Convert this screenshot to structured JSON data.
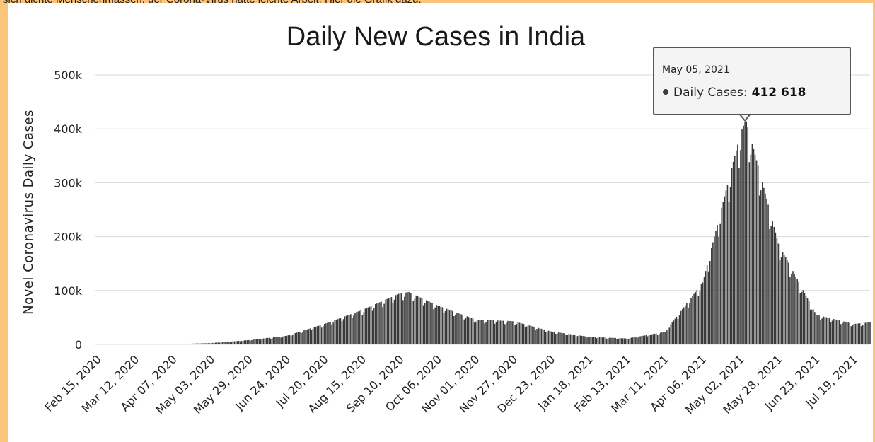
{
  "caption": "sich dichte Menschenmassen, der Corona-Virus hatte leichte Arbeit. Hier die Grafik dazu:",
  "chart_data": {
    "type": "bar",
    "title": "Daily New Cases in India",
    "ylabel": "Novel Coronavirus Daily Cases",
    "xlabel": "",
    "ylim": [
      0,
      500000
    ],
    "grid": true,
    "y_tick_labels": [
      "0",
      "100k",
      "200k",
      "300k",
      "400k",
      "500k"
    ],
    "x_tick_labels": [
      "Feb 15, 2020",
      "Mar 12, 2020",
      "Apr 07, 2020",
      "May 03, 2020",
      "May 29, 2020",
      "Jun 24, 2020",
      "Jul 20, 2020",
      "Aug 15, 2020",
      "Sep 10, 2020",
      "Oct 06, 2020",
      "Nov 01, 2020",
      "Nov 27, 2020",
      "Dec 23, 2020",
      "Jan 18, 2021",
      "Feb 13, 2021",
      "Mar 11, 2021",
      "Apr 06, 2021",
      "May 02, 2021",
      "May 28, 2021",
      "Jun 23, 2021",
      "Jul 19, 2021"
    ],
    "x_range": [
      "2020-02-15",
      "2021-07-30"
    ],
    "series": [
      {
        "values_by_date": [
          [
            "2020-02-15",
            0
          ],
          [
            "2020-03-12",
            20
          ],
          [
            "2020-04-07",
            600
          ],
          [
            "2020-05-03",
            2500
          ],
          [
            "2020-05-29",
            8000
          ],
          [
            "2020-06-24",
            16000
          ],
          [
            "2020-07-20",
            38000
          ],
          [
            "2020-08-15",
            64000
          ],
          [
            "2020-09-10",
            95000
          ],
          [
            "2020-09-16",
            97000
          ],
          [
            "2020-10-06",
            72000
          ],
          [
            "2020-11-01",
            46000
          ],
          [
            "2020-11-27",
            43000
          ],
          [
            "2020-12-23",
            24000
          ],
          [
            "2021-01-18",
            14000
          ],
          [
            "2021-02-13",
            11000
          ],
          [
            "2021-03-11",
            23000
          ],
          [
            "2021-04-06",
            115000
          ],
          [
            "2021-05-02",
            392000
          ],
          [
            "2021-05-05",
            412618
          ],
          [
            "2021-05-06",
            414000
          ],
          [
            "2021-05-28",
            187000
          ],
          [
            "2021-06-23",
            55000
          ],
          [
            "2021-07-19",
            38000
          ],
          [
            "2021-07-30",
            41000
          ]
        ]
      }
    ],
    "colors": {
      "bars": "#3a3a3a",
      "grid": "#d8d8d8"
    }
  },
  "tooltip": {
    "date": "May 05, 2021",
    "label": "Daily Cases:",
    "value": "412 618",
    "target_date": "2021-05-05"
  }
}
